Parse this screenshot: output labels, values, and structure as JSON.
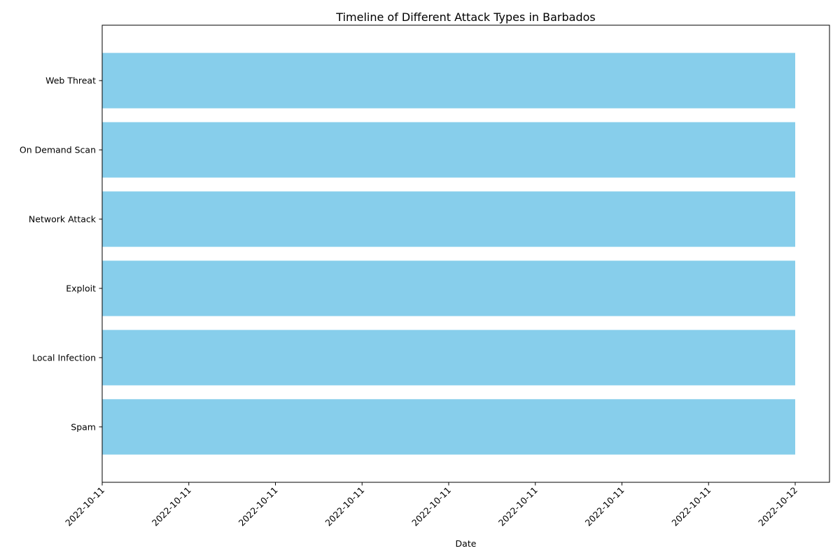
{
  "chart_data": {
    "type": "bar",
    "orientation": "horizontal",
    "title": "Timeline of Different Attack Types in Barbados",
    "xlabel": "Date",
    "ylabel": "",
    "categories": [
      "Spam",
      "Local Infection",
      "Exploit",
      "Network Attack",
      "On Demand Scan",
      "Web Threat"
    ],
    "bars": [
      {
        "category": "Spam",
        "start": "2022-10-11",
        "end": "2022-10-12"
      },
      {
        "category": "Local Infection",
        "start": "2022-10-11",
        "end": "2022-10-12"
      },
      {
        "category": "Exploit",
        "start": "2022-10-11",
        "end": "2022-10-12"
      },
      {
        "category": "Network Attack",
        "start": "2022-10-11",
        "end": "2022-10-12"
      },
      {
        "category": "On Demand Scan",
        "start": "2022-10-11",
        "end": "2022-10-12"
      },
      {
        "category": "Web Threat",
        "start": "2022-10-11",
        "end": "2022-10-12"
      }
    ],
    "x_tick_labels": [
      "2022-10-11",
      "2022-10-11",
      "2022-10-11",
      "2022-10-11",
      "2022-10-11",
      "2022-10-11",
      "2022-10-11",
      "2022-10-11",
      "2022-10-12"
    ],
    "xlim": [
      "2022-10-11",
      "2022-10-12"
    ],
    "bar_color": "#87ceeb",
    "grid": false,
    "legend": false
  }
}
